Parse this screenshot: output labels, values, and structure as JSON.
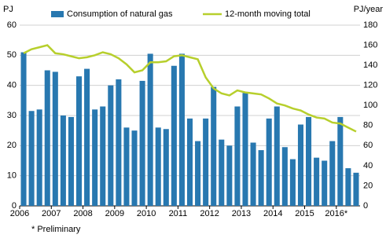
{
  "chart_data": {
    "type": "bar",
    "y_label": "PJ",
    "y2_label": "PJ/year",
    "footnote": "* Preliminary",
    "categories": [
      "2006",
      null,
      null,
      null,
      "2007",
      null,
      null,
      null,
      "2008",
      null,
      null,
      null,
      "2009",
      null,
      null,
      null,
      "2010",
      null,
      null,
      null,
      "2011",
      null,
      null,
      null,
      "2012",
      null,
      null,
      null,
      "2013",
      null,
      null,
      null,
      "2014",
      null,
      null,
      null,
      "2015",
      null,
      null,
      null,
      "2016*",
      null,
      null
    ],
    "series": [
      {
        "name": "Consumption of natural gas",
        "type": "bar",
        "color": "#2878b0",
        "values": [
          51,
          31.5,
          32,
          45,
          44.5,
          30,
          29.5,
          43,
          45.5,
          32,
          33,
          40,
          42,
          26,
          25,
          41.5,
          50.5,
          26,
          25.5,
          46.5,
          50.5,
          29,
          21.5,
          29,
          39.5,
          22,
          20,
          33,
          37.5,
          21,
          18.5,
          29,
          33,
          19.5,
          15.5,
          27,
          29.5,
          16,
          15,
          21.5,
          29.5,
          12.5,
          11
        ]
      },
      {
        "name": "12-month moving total",
        "type": "line",
        "axis": "y2",
        "color": "#b7cf2c",
        "values": [
          152,
          156,
          158,
          160,
          152,
          151,
          149,
          147,
          148,
          150,
          153,
          151,
          147,
          141,
          133,
          135,
          143,
          143,
          144,
          149,
          150,
          148,
          146,
          128,
          117,
          112,
          110,
          115,
          113,
          112,
          111,
          107,
          102,
          100,
          97,
          95,
          91,
          88,
          87,
          83,
          82,
          78,
          74
        ]
      }
    ],
    "ylim": [
      0,
      60
    ],
    "yticks": [
      0,
      10,
      20,
      30,
      40,
      50,
      60
    ],
    "y2lim": [
      0,
      180
    ],
    "y2ticks": [
      0,
      20,
      40,
      60,
      80,
      100,
      120,
      140,
      160,
      180
    ],
    "grid": true
  }
}
